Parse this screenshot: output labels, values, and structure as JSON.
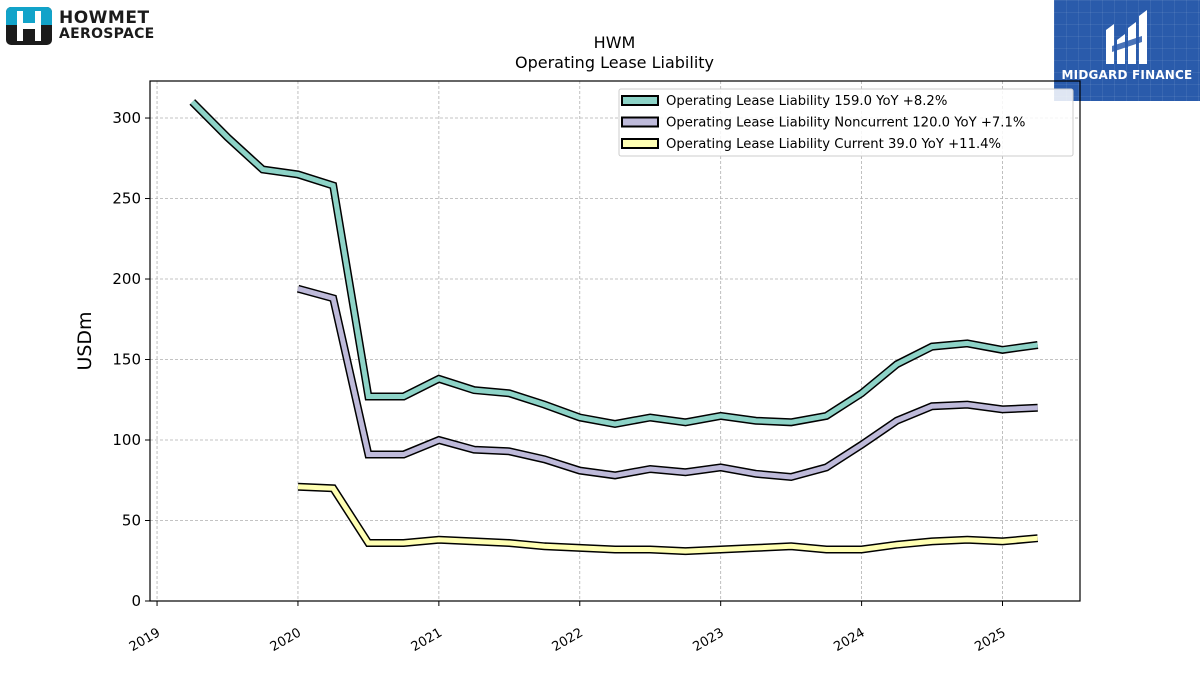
{
  "logos": {
    "left": {
      "line1": "HOWMET",
      "line2": "AEROSPACE"
    },
    "right": {
      "text": "MIDGARD FINANCE"
    }
  },
  "colors": {
    "total": "#8dd3c7",
    "noncurrent": "#bebada",
    "current": "#ffffb3",
    "outline": "#000000",
    "grid": "#b0b0b0",
    "brand_blue": "#2a5bab",
    "howmet_teal": "#12a3c9"
  },
  "chart_data": {
    "type": "line",
    "title": "HWM",
    "subtitle": "Operating Lease Liability",
    "xlabel": "",
    "ylabel": "USDm",
    "xlim": [
      2018.95,
      2025.55
    ],
    "ylim": [
      0,
      323
    ],
    "yticks": [
      0,
      50,
      100,
      150,
      200,
      250,
      300
    ],
    "xticks": [
      2019,
      2020,
      2021,
      2022,
      2023,
      2024,
      2025
    ],
    "xtick_labels": [
      "2019",
      "2020",
      "2021",
      "2022",
      "2023",
      "2024",
      "2025"
    ],
    "grid": true,
    "legend_position": "top-right",
    "series": [
      {
        "name": "Operating Lease Liability  159.0 YoY +8.2%",
        "color_key": "total",
        "x": [
          2019.25,
          2019.5,
          2019.75,
          2020.0,
          2020.25,
          2020.5,
          2020.75,
          2021.0,
          2021.25,
          2021.5,
          2021.75,
          2022.0,
          2022.25,
          2022.5,
          2022.75,
          2023.0,
          2023.25,
          2023.5,
          2023.75,
          2024.0,
          2024.25,
          2024.5,
          2024.75,
          2025.0,
          2025.25
        ],
        "y": [
          310,
          288,
          268,
          265,
          258,
          127,
          127,
          138,
          131,
          129,
          122,
          114,
          110,
          114,
          111,
          115,
          112,
          111,
          115,
          129,
          147,
          158,
          160,
          156,
          159
        ]
      },
      {
        "name": "Operating Lease Liability Noncurrent  120.0 YoY +7.1%",
        "color_key": "noncurrent",
        "x": [
          2020.0,
          2020.25,
          2020.5,
          2020.75,
          2021.0,
          2021.25,
          2021.5,
          2021.75,
          2022.0,
          2022.25,
          2022.5,
          2022.75,
          2023.0,
          2023.25,
          2023.5,
          2023.75,
          2024.0,
          2024.25,
          2024.5,
          2024.75,
          2025.0,
          2025.25
        ],
        "y": [
          194,
          188,
          91,
          91,
          100,
          94,
          93,
          88,
          81,
          78,
          82,
          80,
          83,
          79,
          77,
          83,
          97,
          112,
          121,
          122,
          119,
          120
        ]
      },
      {
        "name": "Operating Lease Liability Current  39.0 YoY +11.4%",
        "color_key": "current",
        "x": [
          2020.0,
          2020.25,
          2020.5,
          2020.75,
          2021.0,
          2021.25,
          2021.5,
          2021.75,
          2022.0,
          2022.25,
          2022.5,
          2022.75,
          2023.0,
          2023.25,
          2023.5,
          2023.75,
          2024.0,
          2024.25,
          2024.5,
          2024.75,
          2025.0,
          2025.25
        ],
        "y": [
          71,
          70,
          36,
          36,
          38,
          37,
          36,
          34,
          33,
          32,
          32,
          31,
          32,
          33,
          34,
          32,
          32,
          35,
          37,
          38,
          37,
          39
        ]
      }
    ]
  }
}
